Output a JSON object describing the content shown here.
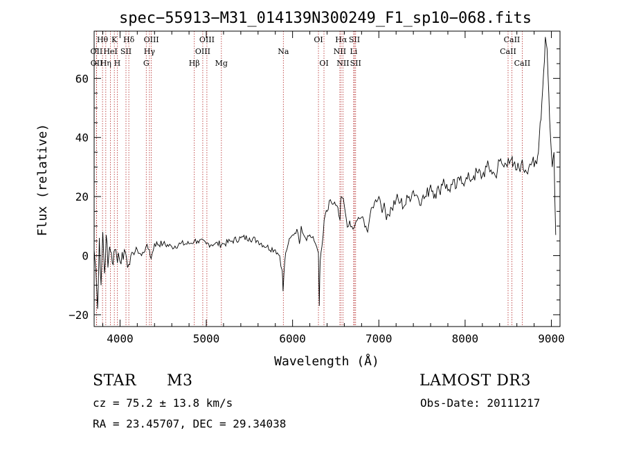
{
  "chart_data": {
    "type": "line",
    "title": "spec−55913−M31_014139N300249_F1_sp10−068.fits",
    "xlabel": "Wavelength (Å)",
    "ylabel": "Flux (relative)",
    "xlim": [
      3700,
      9100
    ],
    "ylim": [
      -24,
      76
    ],
    "xticks": [
      4000,
      5000,
      6000,
      7000,
      8000,
      9000
    ],
    "yticks": [
      -20,
      0,
      20,
      40,
      60
    ],
    "grid": false,
    "series": [
      {
        "name": "flux",
        "x": [
          3700,
          3720,
          3740,
          3760,
          3780,
          3800,
          3820,
          3840,
          3860,
          3880,
          3900,
          3920,
          3940,
          3960,
          3980,
          4000,
          4050,
          4100,
          4150,
          4200,
          4250,
          4300,
          4340,
          4360,
          4400,
          4500,
          4600,
          4700,
          4800,
          4861,
          4900,
          5000,
          5100,
          5200,
          5300,
          5400,
          5500,
          5600,
          5700,
          5800,
          5850,
          5880,
          5890,
          5900,
          5920,
          5950,
          6000,
          6050,
          6080,
          6100,
          6150,
          6200,
          6250,
          6280,
          6300,
          6310,
          6320,
          6340,
          6380,
          6400,
          6450,
          6500,
          6550,
          6563,
          6600,
          6620,
          6650,
          6700,
          6720,
          6750,
          6800,
          6850,
          6870,
          6900,
          6950,
          7000,
          7050,
          7100,
          7150,
          7200,
          7250,
          7300,
          7350,
          7400,
          7450,
          7500,
          7550,
          7600,
          7650,
          7700,
          7750,
          7800,
          7850,
          7900,
          7950,
          8000,
          8050,
          8100,
          8150,
          8200,
          8250,
          8300,
          8350,
          8400,
          8450,
          8500,
          8542,
          8550,
          8600,
          8650,
          8700,
          8750,
          8780,
          8800,
          8830,
          8850,
          8870,
          8890,
          8910,
          8930,
          8950,
          8970,
          8990,
          9010,
          9030,
          9050
        ],
        "values": [
          2,
          -5,
          -18,
          6,
          -10,
          8,
          -6,
          7,
          -4,
          3,
          1,
          -3,
          2,
          0,
          1,
          -2,
          2,
          -3,
          1,
          2,
          0,
          3,
          2,
          -1,
          4,
          4,
          3,
          4,
          4,
          5,
          5,
          4,
          4,
          4,
          5,
          6,
          6,
          5,
          3,
          2,
          0,
          -5,
          -12,
          -6,
          1,
          4,
          7,
          9,
          4,
          10,
          6,
          7,
          5,
          3,
          1,
          -17,
          -2,
          3,
          14,
          15,
          18,
          17,
          12,
          20,
          17,
          13,
          10,
          9,
          10,
          12,
          13,
          10,
          8,
          14,
          18,
          20,
          16,
          14,
          16,
          19,
          18,
          17,
          20,
          22,
          20,
          19,
          20,
          24,
          21,
          22,
          26,
          22,
          24,
          23,
          27,
          25,
          26,
          27,
          28,
          27,
          30,
          29,
          27,
          32,
          30,
          33,
          33,
          30,
          29,
          31,
          29,
          31,
          32,
          30,
          31,
          35,
          45,
          52,
          62,
          74,
          70,
          55,
          40,
          30,
          35,
          7
        ]
      }
    ],
    "line_markers": [
      {
        "label": "Hθ",
        "wl": 3797,
        "row": 1
      },
      {
        "label": "OII",
        "wl": 3727,
        "row": 2
      },
      {
        "label": "OII",
        "wl": 3729,
        "row": 3
      },
      {
        "label": "K",
        "wl": 3934,
        "row": 1
      },
      {
        "label": "HeI",
        "wl": 3889,
        "row": 2
      },
      {
        "label": "Hη",
        "wl": 3835,
        "row": 3
      },
      {
        "label": "Hδ",
        "wl": 4102,
        "row": 1
      },
      {
        "label": "SII",
        "wl": 4069,
        "row": 2
      },
      {
        "label": "H",
        "wl": 3968,
        "row": 3
      },
      {
        "label": "OIII",
        "wl": 4363,
        "row": 1
      },
      {
        "label": "Hγ",
        "wl": 4341,
        "row": 2
      },
      {
        "label": "G",
        "wl": 4304,
        "row": 3
      },
      {
        "label": "OIII",
        "wl": 5007,
        "row": 1
      },
      {
        "label": "OIII",
        "wl": 4959,
        "row": 2
      },
      {
        "label": "Hβ",
        "wl": 4861,
        "row": 3
      },
      {
        "label": "Mg",
        "wl": 5175,
        "row": 3
      },
      {
        "label": "Na",
        "wl": 5893,
        "row": 2
      },
      {
        "label": "OI",
        "wl": 6300,
        "row": 1
      },
      {
        "label": "OI",
        "wl": 6364,
        "row": 3
      },
      {
        "label": "Hα",
        "wl": 6563,
        "row": 1
      },
      {
        "label": "NII",
        "wl": 6548,
        "row": 2
      },
      {
        "label": "NII",
        "wl": 6584,
        "row": 3
      },
      {
        "label": "SII",
        "wl": 6717,
        "row": 1
      },
      {
        "label": "Li",
        "wl": 6708,
        "row": 2
      },
      {
        "label": "SII",
        "wl": 6731,
        "row": 3
      },
      {
        "label": "CaII",
        "wl": 8542,
        "row": 1
      },
      {
        "label": "CaII",
        "wl": 8498,
        "row": 2
      },
      {
        "label": "CaII",
        "wl": 8662,
        "row": 3
      }
    ],
    "colors": {
      "line": "#000000",
      "marker": "#b22222"
    }
  },
  "info": {
    "class_label": "STAR",
    "subclass": "M3",
    "survey": "LAMOST DR3",
    "cz": "cz = 75.2 ± 13.8 km/s",
    "obs_date": "Obs-Date: 20111217",
    "coords": "RA =  23.45707, DEC =  29.34038"
  }
}
